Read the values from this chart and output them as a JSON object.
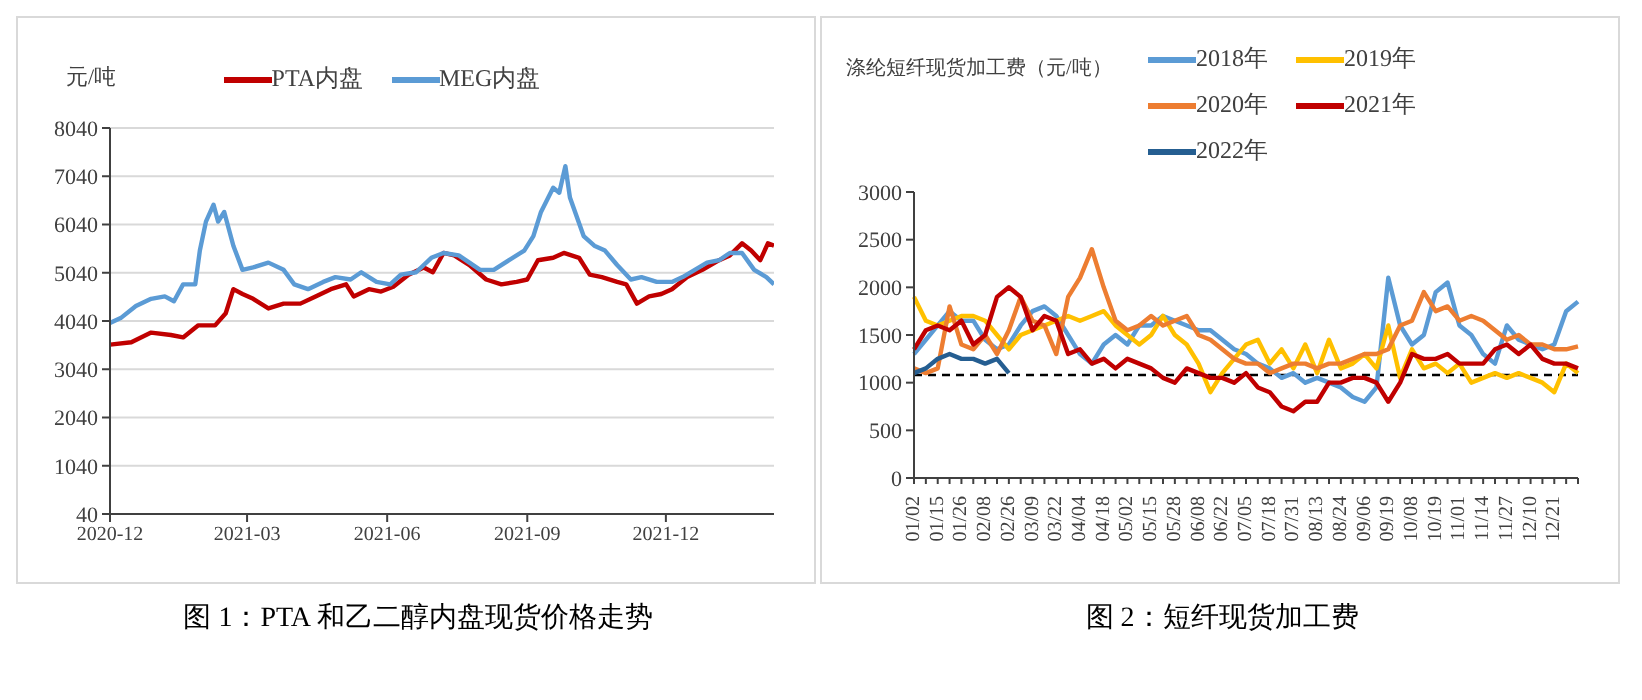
{
  "chart_data": [
    {
      "type": "line",
      "ylabel": "元/吨",
      "annotations": [
        "图 1：PTA 和乙二醇内盘现货价格走势"
      ],
      "xlim": [
        "2020-12",
        "2022-02-10"
      ],
      "xticks": [
        "2020-12",
        "2021-03",
        "2021-06",
        "2021-09",
        "2021-12"
      ],
      "ylim": [
        40,
        8040
      ],
      "yticks": [
        40,
        1040,
        2040,
        3040,
        4040,
        5040,
        6040,
        7040,
        8040
      ],
      "grid": "y",
      "legend": "top",
      "series": [
        {
          "name": "PTA内盘",
          "color": "#c00000",
          "x": [
            "2020-12-01",
            "2020-12-15",
            "2020-12-28",
            "2021-01-10",
            "2021-01-18",
            "2021-01-28",
            "2021-02-08",
            "2021-02-15",
            "2021-02-20",
            "2021-02-26",
            "2021-03-05",
            "2021-03-15",
            "2021-03-25",
            "2021-04-05",
            "2021-04-15",
            "2021-04-25",
            "2021-05-05",
            "2021-05-10",
            "2021-05-20",
            "2021-05-28",
            "2021-06-05",
            "2021-06-15",
            "2021-06-25",
            "2021-07-01",
            "2021-07-08",
            "2021-07-15",
            "2021-07-25",
            "2021-08-05",
            "2021-08-15",
            "2021-08-25",
            "2021-09-01",
            "2021-09-08",
            "2021-09-18",
            "2021-09-25",
            "2021-10-05",
            "2021-10-12",
            "2021-10-20",
            "2021-10-30",
            "2021-11-05",
            "2021-11-12",
            "2021-11-20",
            "2021-11-28",
            "2021-12-05",
            "2021-12-15",
            "2021-12-25",
            "2022-01-05",
            "2022-01-12",
            "2022-01-20",
            "2022-01-26",
            "2022-02-01",
            "2022-02-06",
            "2022-02-10"
          ],
          "values": [
            3550,
            3600,
            3800,
            3750,
            3700,
            3950,
            3950,
            4200,
            4700,
            4600,
            4500,
            4300,
            4400,
            4400,
            4550,
            4700,
            4800,
            4550,
            4700,
            4650,
            4750,
            5000,
            5150,
            5050,
            5450,
            5400,
            5200,
            4900,
            4800,
            4850,
            4900,
            5300,
            5350,
            5450,
            5350,
            5000,
            4950,
            4850,
            4800,
            4400,
            4550,
            4600,
            4700,
            4950,
            5100,
            5300,
            5400,
            5650,
            5500,
            5300,
            5650,
            5600
          ]
        },
        {
          "name": "MEG内盘",
          "color": "#5b9bd5",
          "x": [
            "2020-12-01",
            "2020-12-08",
            "2020-12-18",
            "2020-12-28",
            "2021-01-06",
            "2021-01-12",
            "2021-01-18",
            "2021-01-26",
            "2021-01-29",
            "2021-02-02",
            "2021-02-07",
            "2021-02-10",
            "2021-02-14",
            "2021-02-20",
            "2021-02-26",
            "2021-03-05",
            "2021-03-15",
            "2021-03-25",
            "2021-04-01",
            "2021-04-10",
            "2021-04-20",
            "2021-04-28",
            "2021-05-08",
            "2021-05-15",
            "2021-05-25",
            "2021-06-03",
            "2021-06-10",
            "2021-06-20",
            "2021-06-30",
            "2021-07-08",
            "2021-07-18",
            "2021-07-25",
            "2021-08-01",
            "2021-08-10",
            "2021-08-20",
            "2021-08-30",
            "2021-09-05",
            "2021-09-10",
            "2021-09-18",
            "2021-09-22",
            "2021-09-26",
            "2021-09-29",
            "2021-10-08",
            "2021-10-15",
            "2021-10-22",
            "2021-10-30",
            "2021-11-08",
            "2021-11-15",
            "2021-11-25",
            "2021-12-05",
            "2021-12-12",
            "2021-12-20",
            "2021-12-28",
            "2022-01-05",
            "2022-01-12",
            "2022-01-20",
            "2022-01-28",
            "2022-02-05",
            "2022-02-10"
          ],
          "values": [
            4000,
            4100,
            4350,
            4500,
            4550,
            4450,
            4800,
            4800,
            5500,
            6100,
            6450,
            6100,
            6300,
            5600,
            5100,
            5150,
            5250,
            5100,
            4800,
            4700,
            4850,
            4950,
            4900,
            5050,
            4850,
            4800,
            5000,
            5050,
            5350,
            5450,
            5400,
            5250,
            5100,
            5100,
            5300,
            5500,
            5800,
            6300,
            6800,
            6700,
            7250,
            6600,
            5800,
            5600,
            5500,
            5200,
            4900,
            4950,
            4850,
            4850,
            4950,
            5100,
            5250,
            5300,
            5450,
            5450,
            5100,
            4950,
            4800
          ]
        }
      ]
    },
    {
      "type": "line",
      "ylabel": "涤纶短纤现货加工费（元/吨）",
      "annotations": [
        "图 2：短纤现货加工费"
      ],
      "categories": [
        "01/02",
        null,
        "01/15",
        null,
        "01/26",
        null,
        "02/08",
        null,
        "02/26",
        null,
        "03/09",
        null,
        "03/22",
        null,
        "04/04",
        null,
        "04/18",
        null,
        "05/02",
        null,
        "05/15",
        null,
        "05/28",
        null,
        "06/08",
        null,
        "06/22",
        null,
        "07/05",
        null,
        "07/18",
        null,
        "07/31",
        null,
        "08/13",
        null,
        "08/24",
        null,
        "09/06",
        null,
        "09/19",
        null,
        "10/08",
        null,
        "10/19",
        null,
        "11/01",
        null,
        "11/14",
        null,
        "11/27",
        null,
        "12/10",
        null,
        "12/21",
        null,
        null
      ],
      "ylim": [
        0,
        3000
      ],
      "yticks": [
        0,
        500,
        1000,
        1500,
        2000,
        2500,
        3000
      ],
      "legend": "top right",
      "ref_lines": [
        {
          "axis": "y",
          "value": 1080,
          "color": "#000000",
          "line_style": "dashed"
        }
      ],
      "series": [
        {
          "name": "2018年",
          "color": "#5b9bd5",
          "values": [
            1300,
            1450,
            1600,
            1750,
            1650,
            1650,
            1450,
            1350,
            1400,
            1600,
            1750,
            1800,
            1700,
            1500,
            1300,
            1200,
            1400,
            1500,
            1400,
            1600,
            1600,
            1700,
            1650,
            1600,
            1550,
            1550,
            1450,
            1350,
            1300,
            1200,
            1150,
            1050,
            1100,
            1000,
            1050,
            1000,
            950,
            850,
            800,
            950,
            2100,
            1600,
            1400,
            1500,
            1950,
            2050,
            1600,
            1500,
            1300,
            1200,
            1600,
            1450,
            1400,
            1350,
            1400,
            1750,
            1850
          ]
        },
        {
          "name": "2019年",
          "color": "#ffc000",
          "values": [
            1900,
            1650,
            1600,
            1650,
            1700,
            1700,
            1650,
            1500,
            1350,
            1500,
            1550,
            1600,
            1650,
            1700,
            1650,
            1700,
            1750,
            1600,
            1500,
            1400,
            1500,
            1700,
            1500,
            1400,
            1200,
            900,
            1100,
            1250,
            1400,
            1450,
            1200,
            1350,
            1150,
            1400,
            1100,
            1450,
            1150,
            1200,
            1300,
            1150,
            1600,
            1050,
            1350,
            1150,
            1200,
            1100,
            1200,
            1000,
            1050,
            1100,
            1050,
            1100,
            1050,
            1000,
            900,
            1200,
            1100
          ]
        },
        {
          "name": "2020年",
          "color": "#ed7d31",
          "values": [
            1150,
            1100,
            1150,
            1800,
            1400,
            1350,
            1500,
            1300,
            1550,
            1900,
            1650,
            1600,
            1300,
            1900,
            2100,
            2400,
            2000,
            1650,
            1550,
            1600,
            1700,
            1600,
            1650,
            1700,
            1500,
            1450,
            1350,
            1250,
            1200,
            1200,
            1100,
            1150,
            1200,
            1200,
            1150,
            1200,
            1200,
            1250,
            1300,
            1300,
            1350,
            1600,
            1650,
            1950,
            1750,
            1800,
            1650,
            1700,
            1650,
            1550,
            1450,
            1500,
            1400,
            1400,
            1350,
            1350,
            1380
          ]
        },
        {
          "name": "2021年",
          "color": "#c00000",
          "values": [
            1350,
            1550,
            1600,
            1550,
            1650,
            1400,
            1500,
            1900,
            2000,
            1900,
            1550,
            1700,
            1650,
            1300,
            1350,
            1200,
            1250,
            1150,
            1250,
            1200,
            1150,
            1050,
            1000,
            1150,
            1100,
            1050,
            1050,
            1000,
            1100,
            950,
            900,
            750,
            700,
            800,
            800,
            1000,
            1000,
            1050,
            1050,
            1000,
            800,
            1000,
            1300,
            1250,
            1250,
            1300,
            1200,
            1200,
            1200,
            1350,
            1400,
            1300,
            1400,
            1250,
            1200,
            1200,
            1150
          ]
        },
        {
          "name": "2022年",
          "color": "#255e91",
          "values": [
            1100,
            1150,
            1250,
            1300,
            1250,
            1250,
            1200,
            1250,
            1100,
            null,
            null,
            null,
            null,
            null,
            null,
            null,
            null,
            null,
            null,
            null,
            null,
            null,
            null,
            null,
            null,
            null,
            null,
            null,
            null,
            null,
            null,
            null,
            null,
            null,
            null,
            null,
            null,
            null,
            null,
            null,
            null,
            null,
            null,
            null,
            null,
            null,
            null,
            null,
            null,
            null,
            null,
            null,
            null,
            null,
            null,
            null,
            null
          ]
        }
      ]
    }
  ]
}
